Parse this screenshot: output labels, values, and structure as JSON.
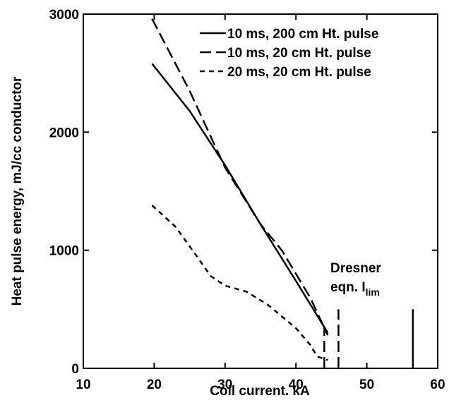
{
  "chart_data": {
    "type": "line",
    "xlabel": "Coil current. kA",
    "ylabel": "Heat pulse energy, mJ/cc conductor",
    "xlim": [
      10,
      60
    ],
    "ylim": [
      0,
      3000
    ],
    "xticks": [
      10,
      20,
      30,
      40,
      50,
      60
    ],
    "yticks": [
      0,
      1000,
      2000,
      3000
    ],
    "legend": "upper right",
    "series": [
      {
        "name": "10 ms,  200 cm Ht. pulse",
        "color": "#000000",
        "style": "solid",
        "x": [
          19.7,
          25,
          30,
          35,
          40,
          44.5
        ],
        "values": [
          2580,
          2180,
          1720,
          1220,
          740,
          300
        ]
      },
      {
        "name": "10 ms,  20 cm Ht. pulse",
        "color": "#000000",
        "style": "dashed",
        "x": [
          19.7,
          25,
          30,
          35,
          38,
          42,
          44.5
        ],
        "values": [
          2960,
          2350,
          1700,
          1220,
          1000,
          600,
          280
        ]
      },
      {
        "name": "20 ms,  20 cm Ht. pulse",
        "color": "#000000",
        "style": "dotted",
        "x": [
          19.7,
          23,
          26,
          28,
          30,
          33,
          36,
          40,
          42,
          43,
          44.5
        ],
        "values": [
          1380,
          1200,
          950,
          780,
          700,
          650,
          540,
          340,
          200,
          100,
          70
        ]
      }
    ],
    "reference_lines": [
      {
        "x": 44,
        "ymax": 350,
        "style": "dashed"
      },
      {
        "x": 46,
        "ymax": 500,
        "style": "dashed"
      },
      {
        "x": 56.5,
        "ymax": 500,
        "style": "solid"
      }
    ],
    "annotation": {
      "lines": [
        "Dresner",
        "eqn. I"
      ],
      "subscript": "lim"
    }
  }
}
